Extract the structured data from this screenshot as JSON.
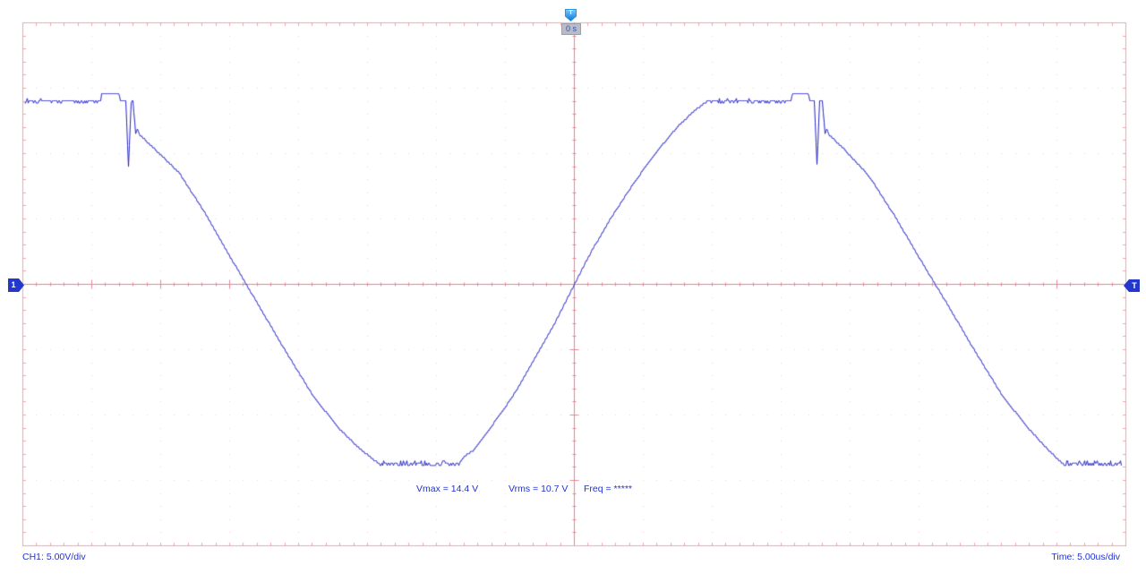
{
  "scope": {
    "trigger": {
      "flag_label": "T",
      "time_readout": "0 s"
    },
    "left_marker_label": "1",
    "right_marker_label": "T",
    "measurements": [
      {
        "text": "Vmax = 14.4 V"
      },
      {
        "text": "Vrms = 10.7 V"
      },
      {
        "text": "Freq = *****"
      }
    ],
    "footer": {
      "channel": "CH1: 5.00V/div",
      "timebase": "Time: 5.00us/div"
    },
    "colors": {
      "background": "#ffffff",
      "grid_border": "#f2a3b1",
      "grid_center": "#ec8296",
      "grid_dots": "#f4cdd6",
      "trace": "#2424c8",
      "text": "#2233cc",
      "trigger_flag": "#2196e8",
      "marker": "#2337cf",
      "readout_bg": "#b9bcc4"
    }
  },
  "chart_data": {
    "type": "line",
    "title": "",
    "x_units": "us",
    "y_units": "V",
    "time_per_div_us": 5.0,
    "volts_per_div_v": 5.0,
    "x_divisions": 16,
    "y_divisions": 8,
    "x_range_us": [
      -40,
      40
    ],
    "y_range_v": [
      -20,
      20
    ],
    "trigger_time_us": 0,
    "grid": "dotted-divisions with ticked border and center crosshair",
    "legend": "none",
    "measurements": {
      "vmax_v": 14.4,
      "vrms_v": 10.7,
      "freq": "*****"
    },
    "series": [
      {
        "name": "CH1",
        "color": "#2424c8",
        "quantize_v": 0.18,
        "noise_amp_v": 0.3,
        "noise_segments_us": [
          [
            -39.9,
            -34.35,
            -1
          ],
          [
            -14.0,
            -8.4,
            1
          ],
          [
            9.9,
            15.7,
            -1
          ],
          [
            35.6,
            39.68,
            1
          ]
        ],
        "anchors_us_v": [
          [
            -39.9,
            14.1
          ],
          [
            -34.35,
            14.1
          ],
          [
            -34.29,
            14.5
          ],
          [
            -32.99,
            14.5
          ],
          [
            -32.92,
            14.1
          ],
          [
            -32.53,
            14.1
          ],
          [
            -32.34,
            9.0
          ],
          [
            -32.14,
            14.0
          ],
          [
            -32.01,
            14.0
          ],
          [
            -31.82,
            11.5
          ],
          [
            -31.69,
            11.9
          ],
          [
            -31.49,
            11.4
          ],
          [
            -30.58,
            10.5
          ],
          [
            -28.64,
            8.5
          ],
          [
            -26.69,
            5.3
          ],
          [
            -24.74,
            1.7
          ],
          [
            -22.79,
            -1.8
          ],
          [
            -20.84,
            -5.3
          ],
          [
            -18.9,
            -8.6
          ],
          [
            -17.08,
            -11.0
          ],
          [
            -15.65,
            -12.5
          ],
          [
            -14.81,
            -13.2
          ],
          [
            -14.09,
            -13.8
          ],
          [
            -8.38,
            -13.8
          ],
          [
            -8.12,
            -13.3
          ],
          [
            -7.34,
            -12.7
          ],
          [
            -6.17,
            -11.1
          ],
          [
            -4.48,
            -8.6
          ],
          [
            -2.66,
            -5.3
          ],
          [
            -1.23,
            -2.6
          ],
          [
            0,
            0
          ],
          [
            1.23,
            2.5
          ],
          [
            2.79,
            5.3
          ],
          [
            4.48,
            8.0
          ],
          [
            6.17,
            10.4
          ],
          [
            7.53,
            12.1
          ],
          [
            8.64,
            13.2
          ],
          [
            9.35,
            13.8
          ],
          [
            9.87,
            14.1
          ],
          [
            15.71,
            14.1
          ],
          [
            15.84,
            14.5
          ],
          [
            17.01,
            14.5
          ],
          [
            17.08,
            14.1
          ],
          [
            17.4,
            14.1
          ],
          [
            17.6,
            9.1
          ],
          [
            17.79,
            14.0
          ],
          [
            17.99,
            14.0
          ],
          [
            18.18,
            11.5
          ],
          [
            18.31,
            11.9
          ],
          [
            18.51,
            11.4
          ],
          [
            19.42,
            10.5
          ],
          [
            21.36,
            8.3
          ],
          [
            23.31,
            5.1
          ],
          [
            25.26,
            1.6
          ],
          [
            27.21,
            -1.8
          ],
          [
            29.16,
            -5.3
          ],
          [
            31.1,
            -8.6
          ],
          [
            32.92,
            -11.0
          ],
          [
            34.22,
            -12.5
          ],
          [
            35.0,
            -13.3
          ],
          [
            35.52,
            -13.8
          ],
          [
            39.68,
            -13.8
          ]
        ]
      }
    ]
  }
}
